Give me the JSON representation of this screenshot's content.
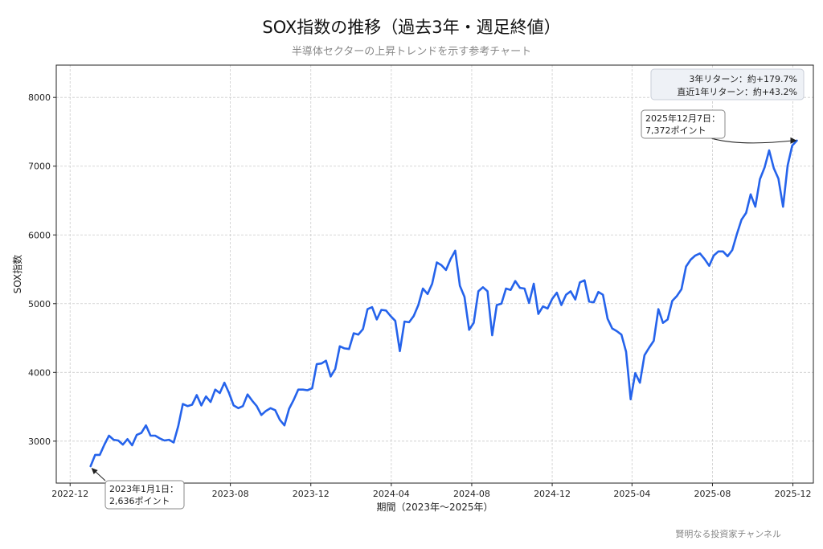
{
  "header": {
    "title": "SOX指数の推移（過去3年・週足終値）",
    "subtitle": "半導体セクターの上昇トレンドを示す参考チャート"
  },
  "footer": {
    "credit": "賢明なる投資家チャンネル"
  },
  "chart_data": {
    "type": "line",
    "title": "SOX指数の推移（過去3年・週足終値）",
    "subtitle": "半導体セクターの上昇トレンドを示す参考チャート",
    "xlabel": "期間（2023年～2025年）",
    "ylabel": "SOX指数",
    "x_range": [
      "2022-11-10",
      "2026-01-01"
    ],
    "ylim": [
      2390,
      8470
    ],
    "x_ticks": [
      {
        "label": "2022-12",
        "date": "2022-12-01"
      },
      {
        "label": "2023-08",
        "date": "2023-08-01"
      },
      {
        "label": "2023-12",
        "date": "2023-12-01"
      },
      {
        "label": "2024-04",
        "date": "2024-04-01"
      },
      {
        "label": "2024-08",
        "date": "2024-08-01"
      },
      {
        "label": "2024-12",
        "date": "2024-12-01"
      },
      {
        "label": "2025-04",
        "date": "2025-04-01"
      },
      {
        "label": "2025-08",
        "date": "2025-08-01"
      },
      {
        "label": "2025-12",
        "date": "2025-12-01"
      }
    ],
    "y_ticks": [
      3000,
      4000,
      5000,
      6000,
      7000,
      8000
    ],
    "grid": true,
    "line_color": "#2563eb",
    "series": [
      {
        "start_date": "2023-01-01",
        "end_date": "2025-12-07",
        "values": [
          2636,
          2800,
          2800,
          2950,
          3080,
          3020,
          3010,
          2950,
          3030,
          2940,
          3090,
          3120,
          3230,
          3080,
          3080,
          3040,
          3010,
          3020,
          2980,
          3220,
          3540,
          3510,
          3530,
          3670,
          3520,
          3650,
          3570,
          3750,
          3700,
          3850,
          3700,
          3520,
          3480,
          3510,
          3680,
          3590,
          3510,
          3380,
          3440,
          3480,
          3450,
          3310,
          3230,
          3470,
          3600,
          3750,
          3750,
          3740,
          3770,
          4120,
          4130,
          4170,
          3940,
          4050,
          4380,
          4350,
          4340,
          4570,
          4550,
          4630,
          4920,
          4950,
          4770,
          4910,
          4900,
          4820,
          4750,
          4310,
          4740,
          4730,
          4820,
          4980,
          5220,
          5140,
          5290,
          5600,
          5560,
          5490,
          5650,
          5770,
          5260,
          5100,
          4620,
          4720,
          5180,
          5240,
          5180,
          4540,
          4980,
          5000,
          5220,
          5200,
          5330,
          5230,
          5220,
          5010,
          5290,
          4850,
          4960,
          4930,
          5070,
          5160,
          4980,
          5130,
          5180,
          5060,
          5310,
          5340,
          5030,
          5020,
          5170,
          5130,
          4780,
          4640,
          4600,
          4550,
          4300,
          3610,
          3990,
          3850,
          4250,
          4360,
          4460,
          4920,
          4720,
          4770,
          5040,
          5110,
          5210,
          5540,
          5640,
          5700,
          5730,
          5650,
          5550,
          5700,
          5760,
          5760,
          5690,
          5780,
          6010,
          6220,
          6320,
          6590,
          6410,
          6810,
          6980,
          7230,
          6970,
          6820,
          6410,
          7010,
          7300,
          7372
        ]
      }
    ],
    "annotations": [
      {
        "name": "start",
        "text_line1": "2023年1月1日：",
        "text_line2": "2,636ポイント",
        "date": "2023-01-01",
        "value": 2636
      },
      {
        "name": "end",
        "text_line1": "2025年12月7日：",
        "text_line2": "7,372ポイント",
        "date": "2025-12-07",
        "value": 7372
      }
    ],
    "stats_box": {
      "line1": "3年リターン：約+179.7%",
      "line2": "直近1年リターン：約+43.2%",
      "placement": "top-right"
    }
  }
}
